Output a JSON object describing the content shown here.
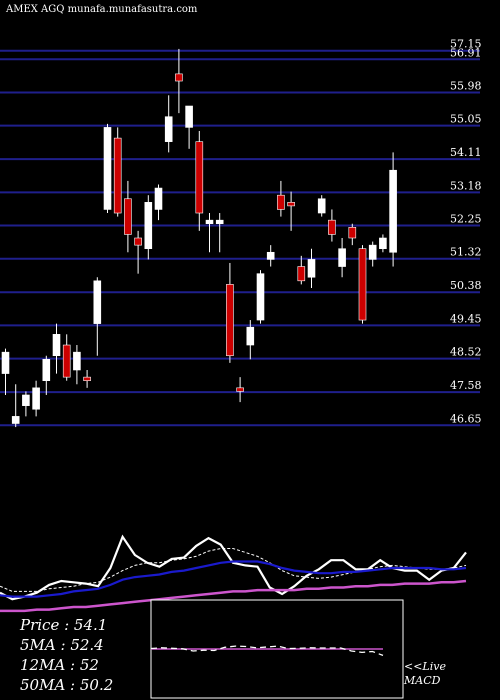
{
  "header": {
    "ticker_line": "AMEX AGQ munafa.munafasutra.com"
  },
  "colors": {
    "background": "#000000",
    "grid": "#1f1f8c",
    "up_candle": "#ffffff",
    "down_candle": "#cc0000",
    "price_line": "#ffffff",
    "ma_fast": "#ffffff",
    "ma_mid": "#1a1acc",
    "ma_slow": "#cc55cc",
    "macd_line": "#ffffff",
    "macd_signal": "#cc55cc"
  },
  "chart_data": [
    {
      "type": "candlestick",
      "y_tick_labels": [
        "57.15",
        "56.91",
        "55.98",
        "55.05",
        "54.11",
        "53.18",
        "52.25",
        "51.32",
        "50.38",
        "49.45",
        "48.52",
        "47.58",
        "46.65"
      ],
      "ylim": [
        46.35,
        57.45
      ],
      "candles": [
        {
          "o": 48.1,
          "h": 48.8,
          "l": 47.5,
          "c": 48.7
        },
        {
          "o": 46.7,
          "h": 47.8,
          "l": 46.6,
          "c": 46.9
        },
        {
          "o": 47.2,
          "h": 47.6,
          "l": 46.9,
          "c": 47.5
        },
        {
          "o": 47.1,
          "h": 47.9,
          "l": 46.9,
          "c": 47.7
        },
        {
          "o": 47.9,
          "h": 48.6,
          "l": 47.5,
          "c": 48.5
        },
        {
          "o": 48.6,
          "h": 49.5,
          "l": 48.1,
          "c": 49.2
        },
        {
          "o": 48.9,
          "h": 49.2,
          "l": 47.9,
          "c": 48.0
        },
        {
          "o": 48.2,
          "h": 48.9,
          "l": 47.8,
          "c": 48.7
        },
        {
          "o": 48.0,
          "h": 48.2,
          "l": 47.7,
          "c": 47.9
        },
        {
          "o": 49.5,
          "h": 50.8,
          "l": 48.6,
          "c": 50.7
        },
        {
          "o": 52.7,
          "h": 55.1,
          "l": 52.6,
          "c": 55.0
        },
        {
          "o": 54.7,
          "h": 55.0,
          "l": 52.5,
          "c": 52.6
        },
        {
          "o": 53.0,
          "h": 53.5,
          "l": 51.5,
          "c": 52.0
        },
        {
          "o": 51.9,
          "h": 52.1,
          "l": 50.9,
          "c": 51.7
        },
        {
          "o": 51.6,
          "h": 53.1,
          "l": 51.3,
          "c": 52.9
        },
        {
          "o": 52.7,
          "h": 53.4,
          "l": 52.4,
          "c": 53.3
        },
        {
          "o": 54.6,
          "h": 55.9,
          "l": 54.3,
          "c": 55.3
        },
        {
          "o": 56.5,
          "h": 57.2,
          "l": 55.4,
          "c": 56.3
        },
        {
          "o": 55.0,
          "h": 55.6,
          "l": 54.4,
          "c": 55.6
        },
        {
          "o": 54.6,
          "h": 54.9,
          "l": 52.1,
          "c": 52.6
        },
        {
          "o": 52.3,
          "h": 52.6,
          "l": 51.5,
          "c": 52.4
        },
        {
          "o": 52.3,
          "h": 52.6,
          "l": 51.5,
          "c": 52.4
        },
        {
          "o": 50.6,
          "h": 51.2,
          "l": 48.4,
          "c": 48.6
        },
        {
          "o": 47.7,
          "h": 48.0,
          "l": 47.3,
          "c": 47.6
        },
        {
          "o": 48.9,
          "h": 49.6,
          "l": 48.5,
          "c": 49.4
        },
        {
          "o": 49.6,
          "h": 51.0,
          "l": 49.5,
          "c": 50.9
        },
        {
          "o": 51.3,
          "h": 51.7,
          "l": 51.1,
          "c": 51.5
        },
        {
          "o": 53.1,
          "h": 53.5,
          "l": 52.5,
          "c": 52.7
        },
        {
          "o": 52.9,
          "h": 53.2,
          "l": 52.1,
          "c": 52.8
        },
        {
          "o": 51.1,
          "h": 51.4,
          "l": 50.6,
          "c": 50.7
        },
        {
          "o": 50.8,
          "h": 51.6,
          "l": 50.5,
          "c": 51.3
        },
        {
          "o": 52.6,
          "h": 53.1,
          "l": 52.5,
          "c": 53.0
        },
        {
          "o": 52.4,
          "h": 52.7,
          "l": 51.8,
          "c": 52.0
        },
        {
          "o": 51.1,
          "h": 51.9,
          "l": 50.8,
          "c": 51.6
        },
        {
          "o": 52.2,
          "h": 52.3,
          "l": 51.7,
          "c": 51.9
        },
        {
          "o": 51.6,
          "h": 51.7,
          "l": 49.5,
          "c": 49.6
        },
        {
          "o": 51.3,
          "h": 51.8,
          "l": 51.1,
          "c": 51.7
        },
        {
          "o": 51.6,
          "h": 52.0,
          "l": 51.5,
          "c": 51.9
        },
        {
          "o": 51.5,
          "h": 54.3,
          "l": 51.1,
          "c": 53.8
        }
      ]
    },
    {
      "type": "line",
      "ylim": [
        0,
        100
      ],
      "series": [
        {
          "name": "price",
          "values": [
            21,
            16,
            18,
            21,
            27,
            30,
            29,
            28,
            26,
            40,
            64,
            50,
            44,
            41,
            47,
            48,
            57,
            63,
            58,
            44,
            42,
            41,
            25,
            20,
            26,
            34,
            39,
            46,
            46,
            39,
            39,
            46,
            40,
            38,
            38,
            31,
            38,
            40,
            52
          ]
        },
        {
          "name": "ma_fast",
          "values": [
            26,
            22,
            22,
            22,
            24,
            25,
            26,
            28,
            29,
            33,
            38,
            42,
            44,
            44,
            46,
            47,
            49,
            53,
            55,
            55,
            52,
            49,
            44,
            38,
            34,
            33,
            32,
            33,
            35,
            37,
            39,
            41,
            42,
            41,
            40,
            39,
            39,
            40,
            42
          ]
        },
        {
          "name": "ma_mid",
          "values": [
            19,
            18,
            18,
            18,
            19,
            20,
            22,
            23,
            24,
            27,
            31,
            33,
            34,
            35,
            37,
            38,
            40,
            42,
            44,
            45,
            45,
            45,
            43,
            40,
            38,
            37,
            36,
            36,
            37,
            37,
            38,
            39,
            40,
            40,
            40,
            40,
            39,
            39,
            40
          ]
        },
        {
          "name": "ma_slow",
          "values": [
            7,
            7,
            7,
            8,
            8,
            9,
            10,
            10,
            11,
            12,
            13,
            14,
            15,
            16,
            17,
            18,
            19,
            20,
            21,
            22,
            22,
            23,
            23,
            23,
            23,
            24,
            24,
            25,
            25,
            26,
            26,
            27,
            27,
            28,
            28,
            28,
            29,
            29,
            30
          ]
        }
      ]
    },
    {
      "type": "line",
      "ylim": [
        -1,
        1
      ],
      "series": [
        {
          "name": "macd",
          "values": [
            0.02,
            0.05,
            0.03,
            0.01,
            -0.08,
            -0.05,
            -0.06,
            0.07,
            0.12,
            0.1,
            0.05,
            0.08,
            0.12,
            0.02,
            0.03,
            0.05,
            0.04,
            0.04,
            0.04,
            -0.08,
            -0.14,
            -0.1,
            -0.26
          ]
        },
        {
          "name": "signal",
          "values": [
            0.0,
            0.0,
            0.0,
            0.0,
            0.0,
            0.0,
            0.0,
            0.0,
            0.0,
            0.0,
            0.0,
            0.0,
            0.0,
            0.0,
            0.0,
            0.0,
            0.0,
            0.0,
            0.0,
            0.0,
            0.0,
            0.0,
            0.0
          ]
        }
      ]
    }
  ],
  "legend": {
    "price": "Price   :  54.1",
    "ma5": "5MA  :  52.4",
    "ma12": "12MA :  52",
    "ma50": "50MA :  50.2"
  },
  "macd_label": {
    "line1": "<<Live",
    "line2": "MACD"
  }
}
